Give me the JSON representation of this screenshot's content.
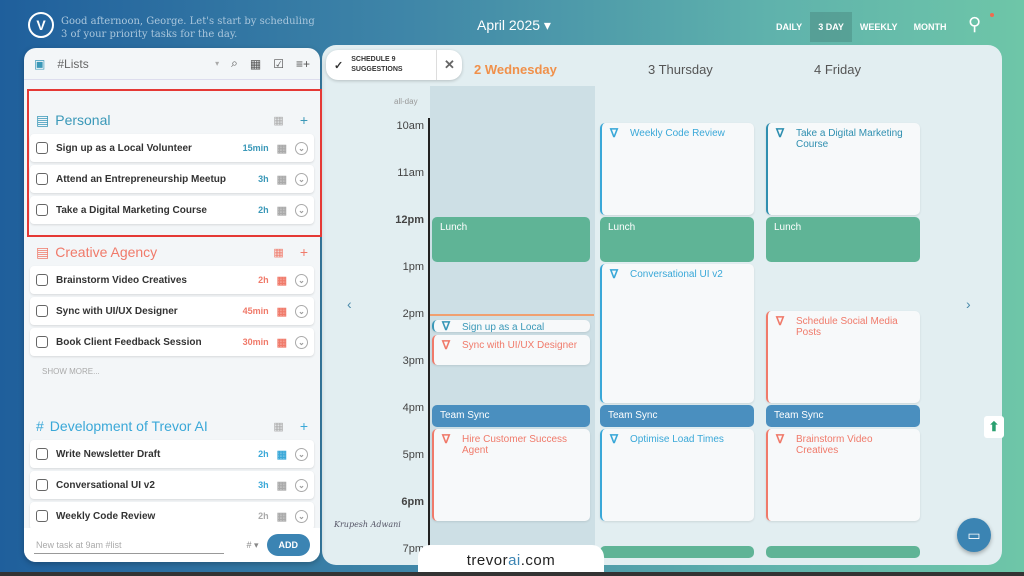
{
  "header": {
    "greeting": "Good afternoon, George. Let's start by scheduling 3 of your priority tasks for the day.",
    "month": "April 2025 ▾",
    "views": [
      "DAILY",
      "3 DAY",
      "WEEKLY",
      "MONTH"
    ],
    "active_view": "3 DAY"
  },
  "panel": {
    "list_selector": "#Lists",
    "sections": [
      {
        "title": "Personal",
        "color": "#3a98b8",
        "tasks": [
          {
            "name": "Sign up as a Local Volunteer",
            "duration": "15min"
          },
          {
            "name": "Attend an Entrepreneurship Meetup",
            "duration": "3h"
          },
          {
            "name": "Take a Digital Marketing Course",
            "duration": "2h"
          }
        ]
      },
      {
        "title": "Creative Agency",
        "color": "#f07a6a",
        "tasks": [
          {
            "name": "Brainstorm Video Creatives",
            "duration": "2h"
          },
          {
            "name": "Sync with UI/UX Designer",
            "duration": "45min"
          },
          {
            "name": "Book Client Feedback Session",
            "duration": "30min"
          }
        ],
        "show_more": "SHOW MORE..."
      },
      {
        "title": "Development of Trevor AI",
        "color": "#3aa8d8",
        "tasks": [
          {
            "name": "Write Newsletter Draft",
            "duration": "2h"
          },
          {
            "name": "Conversational UI v2",
            "duration": "3h"
          },
          {
            "name": "Weekly Code Review",
            "duration": "2h"
          }
        ]
      }
    ],
    "new_task_placeholder": "New task at 9am #list",
    "hash": "# ▾",
    "add": "ADD"
  },
  "schedule_suggestions": "SCHEDULE 9 SUGGESTIONS",
  "calendar": {
    "days": [
      {
        "label": "2 Wednesday",
        "today": true
      },
      {
        "label": "3 Thursday"
      },
      {
        "label": "4 Friday"
      }
    ],
    "all_day": "all-day",
    "hours": [
      "10am",
      "11am",
      "12pm",
      "1pm",
      "2pm",
      "3pm",
      "4pm",
      "5pm",
      "6pm",
      "7pm"
    ],
    "events": [
      {
        "day": 1,
        "start": 10,
        "end": 12,
        "title": "Weekly Code Review",
        "kind": "task",
        "color": "#3aa8d8"
      },
      {
        "day": 2,
        "start": 10,
        "end": 12,
        "title": "Take a Digital Marketing Course",
        "kind": "task",
        "color": "#2f8fb0"
      },
      {
        "day": 0,
        "start": 12,
        "end": 13,
        "title": "Lunch",
        "kind": "block",
        "color": "#5fb496"
      },
      {
        "day": 1,
        "start": 12,
        "end": 13,
        "title": "Lunch",
        "kind": "block",
        "color": "#5fb496"
      },
      {
        "day": 2,
        "start": 12,
        "end": 13,
        "title": "Lunch",
        "kind": "block",
        "color": "#5fb496"
      },
      {
        "day": 1,
        "start": 13,
        "end": 16,
        "title": "Conversational UI v2",
        "kind": "task",
        "color": "#3aa8d8"
      },
      {
        "day": 0,
        "start": 14.2,
        "end": 14.5,
        "title": "Sign up as a Local Volunteer",
        "kind": "task",
        "color": "#3a98b8"
      },
      {
        "day": 0,
        "start": 14.5,
        "end": 15.2,
        "title": "Sync with UI/UX Designer",
        "kind": "task",
        "color": "#f07a6a"
      },
      {
        "day": 2,
        "start": 14,
        "end": 16,
        "title": "Schedule Social Media Posts",
        "kind": "task",
        "color": "#f07a6a"
      },
      {
        "day": 0,
        "start": 16,
        "end": 16.5,
        "title": "Team Sync",
        "kind": "block",
        "color": "#4a8fbf"
      },
      {
        "day": 1,
        "start": 16,
        "end": 16.5,
        "title": "Team Sync",
        "kind": "block",
        "color": "#4a8fbf"
      },
      {
        "day": 2,
        "start": 16,
        "end": 16.5,
        "title": "Team Sync",
        "kind": "block",
        "color": "#4a8fbf"
      },
      {
        "day": 0,
        "start": 16.5,
        "end": 18.5,
        "title": "Hire Customer Success Agent",
        "kind": "task",
        "color": "#f07a6a"
      },
      {
        "day": 1,
        "start": 16.5,
        "end": 18.5,
        "title": "Optimise Load Times",
        "kind": "task",
        "color": "#3aa8d8"
      },
      {
        "day": 2,
        "start": 16.5,
        "end": 18.5,
        "title": "Brainstorm Video Creatives",
        "kind": "task",
        "color": "#f07a6a"
      },
      {
        "day": 1,
        "start": 19,
        "end": 19.3,
        "title": "",
        "kind": "block",
        "color": "#5fb496"
      },
      {
        "day": 2,
        "start": 19,
        "end": 19.3,
        "title": "",
        "kind": "block",
        "color": "#5fb496"
      }
    ]
  },
  "signature": "Krupesh Adwani",
  "brand": {
    "main": "trevor",
    "accent": "ai",
    "tld": ".com"
  }
}
